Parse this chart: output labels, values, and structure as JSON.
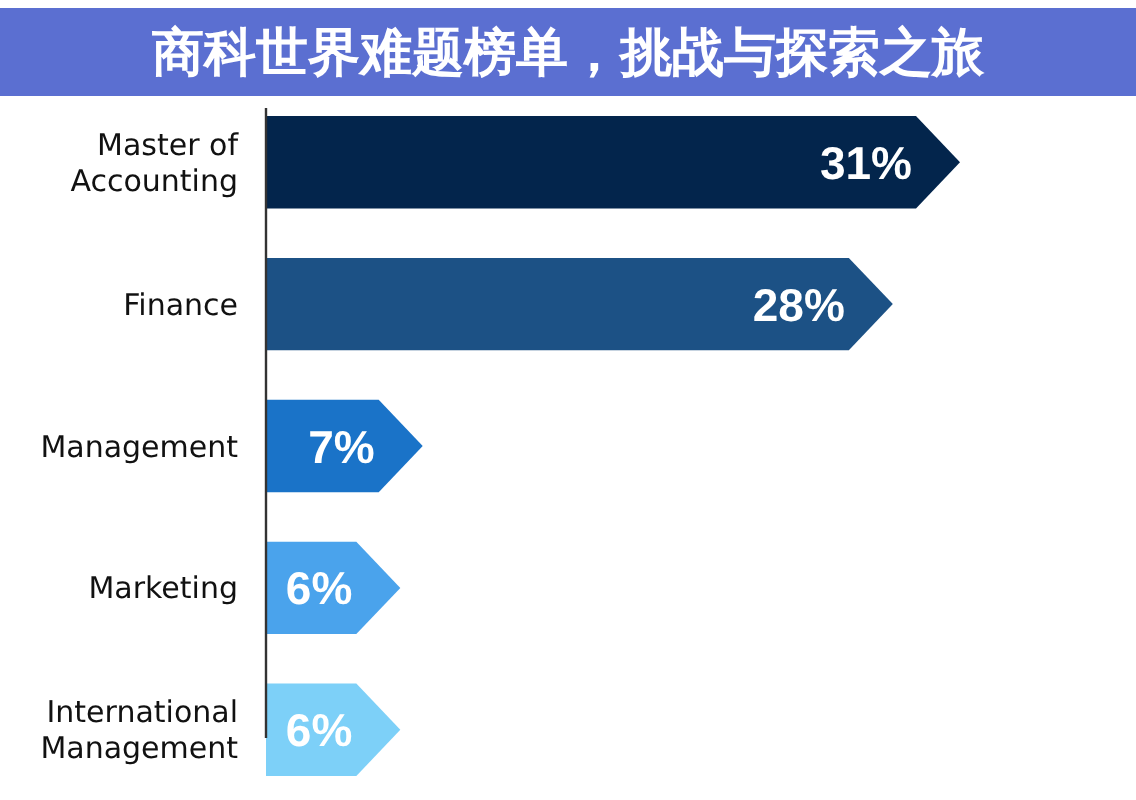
{
  "chart_data": {
    "type": "bar",
    "orientation": "horizontal",
    "title": "商科世界难题榜单，挑战与探索之旅",
    "categories": [
      "Master of Accounting",
      "Finance",
      "Management",
      "Marketing",
      "International Management"
    ],
    "values": [
      31,
      28,
      7,
      6,
      6
    ],
    "value_labels": [
      "31%",
      "28%",
      "7%",
      "6%",
      "6%"
    ],
    "colors": [
      "#03254c",
      "#1c5185",
      "#1a73c8",
      "#4aa3ec",
      "#7dd0f8"
    ]
  }
}
